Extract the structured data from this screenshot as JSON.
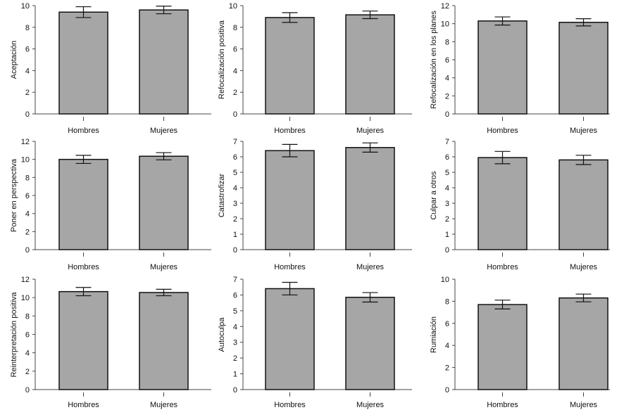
{
  "figure": {
    "bar_fill": "#a6a6a6",
    "bar_stroke": "#111111",
    "axis_color": "#444444"
  },
  "chart_data": [
    {
      "type": "bar",
      "ylabel": "Aceptación",
      "categories": [
        "Hombres",
        "Mujeres"
      ],
      "values": [
        9.4,
        9.6
      ],
      "errors": [
        0.5,
        0.35
      ],
      "ylim": [
        0,
        10
      ],
      "yticks": [
        0,
        2,
        4,
        6,
        8,
        10
      ],
      "grid": false
    },
    {
      "type": "bar",
      "ylabel": "Refocalización positiva",
      "categories": [
        "Hombres",
        "Mujeres"
      ],
      "values": [
        8.9,
        9.15
      ],
      "errors": [
        0.45,
        0.35
      ],
      "ylim": [
        0,
        10
      ],
      "yticks": [
        0,
        2,
        4,
        6,
        8,
        10
      ],
      "grid": false
    },
    {
      "type": "bar",
      "ylabel": "Refocalización en los planes",
      "categories": [
        "Hombres",
        "Mujeres"
      ],
      "values": [
        10.3,
        10.15
      ],
      "errors": [
        0.45,
        0.4
      ],
      "ylim": [
        0,
        12
      ],
      "yticks": [
        0,
        2,
        4,
        6,
        8,
        10,
        12
      ],
      "grid": false
    },
    {
      "type": "bar",
      "ylabel": "Poner en perspectiva",
      "categories": [
        "Hombres",
        "Mujeres"
      ],
      "values": [
        10.0,
        10.35
      ],
      "errors": [
        0.45,
        0.4
      ],
      "ylim": [
        0,
        12
      ],
      "yticks": [
        0,
        2,
        4,
        6,
        8,
        10,
        12
      ],
      "grid": false
    },
    {
      "type": "bar",
      "ylabel": "Catastrofizar",
      "categories": [
        "Hombres",
        "Mujeres"
      ],
      "values": [
        6.4,
        6.6
      ],
      "errors": [
        0.4,
        0.3
      ],
      "ylim": [
        0,
        7
      ],
      "yticks": [
        0,
        1,
        2,
        3,
        4,
        5,
        6,
        7
      ],
      "grid": false
    },
    {
      "type": "bar",
      "ylabel": "Culpar a otros",
      "categories": [
        "Hombres",
        "Mujeres"
      ],
      "values": [
        5.95,
        5.8
      ],
      "errors": [
        0.4,
        0.3
      ],
      "ylim": [
        0,
        7
      ],
      "yticks": [
        0,
        1,
        2,
        3,
        4,
        5,
        6,
        7
      ],
      "grid": false
    },
    {
      "type": "bar",
      "ylabel": "Reinterpretación positiva",
      "categories": [
        "Hombres",
        "Mujeres"
      ],
      "values": [
        10.65,
        10.55
      ],
      "errors": [
        0.45,
        0.35
      ],
      "ylim": [
        0,
        12
      ],
      "yticks": [
        0,
        2,
        4,
        6,
        8,
        10,
        12
      ],
      "grid": false
    },
    {
      "type": "bar",
      "ylabel": "Autoculpa",
      "categories": [
        "Hombres",
        "Mujeres"
      ],
      "values": [
        6.4,
        5.85
      ],
      "errors": [
        0.4,
        0.3
      ],
      "ylim": [
        0,
        7
      ],
      "yticks": [
        0,
        1,
        2,
        3,
        4,
        5,
        6,
        7
      ],
      "grid": false
    },
    {
      "type": "bar",
      "ylabel": "Rumiación",
      "categories": [
        "Hombres",
        "Mujeres"
      ],
      "values": [
        7.7,
        8.3
      ],
      "errors": [
        0.4,
        0.35
      ],
      "ylim": [
        0,
        10
      ],
      "yticks": [
        0,
        2,
        4,
        6,
        8,
        10
      ],
      "grid": false
    }
  ]
}
